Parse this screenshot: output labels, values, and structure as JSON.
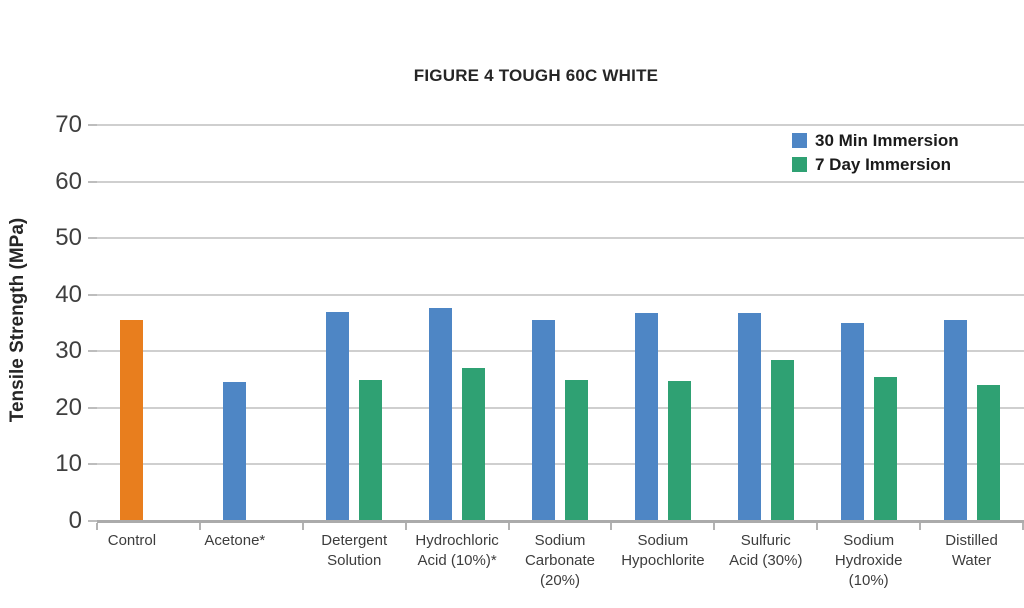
{
  "chart_data": {
    "type": "bar",
    "title": "FIGURE 4 TOUGH 60C WHITE",
    "ylabel": "Tensile Strength (MPa)",
    "xlabel": "",
    "ylim": [
      0,
      70
    ],
    "yticks": [
      0,
      10,
      20,
      30,
      40,
      50,
      60,
      70
    ],
    "grid": true,
    "legend_position": "top-right",
    "categories": [
      "Control",
      "Acetone*",
      "Detergent Solution",
      "Hydrochloric Acid (10%)*",
      "Sodium Carbonate (20%)",
      "Sodium Hypochlorite",
      "Sulfuric Acid (30%)",
      "Sodium Hydroxide (10%)",
      "Distilled Water"
    ],
    "category_label_lines": [
      [
        "Control"
      ],
      [
        "Acetone*"
      ],
      [
        "Detergent",
        "Solution"
      ],
      [
        "Hydrochloric",
        "Acid (10%)*"
      ],
      [
        "Sodium",
        "Carbonate",
        "(20%)"
      ],
      [
        "Sodium",
        "Hypochlorite"
      ],
      [
        "Sulfuric",
        "Acid (30%)"
      ],
      [
        "Sodium",
        "Hydroxide",
        "(10%)"
      ],
      [
        "Distilled",
        "Water"
      ]
    ],
    "series": [
      {
        "name": "30 Min Immersion",
        "color": "#4E86C5",
        "values": [
          35.5,
          24.5,
          37,
          37.7,
          35.5,
          36.7,
          36.8,
          35,
          35.5
        ]
      },
      {
        "name": "7 Day Immersion",
        "color": "#2FA173",
        "values": [
          null,
          null,
          25,
          27.1,
          25,
          24.8,
          28.5,
          25.5,
          24
        ]
      }
    ],
    "bar_color_overrides": [
      {
        "series_index": 0,
        "category_index": 0,
        "color": "#E87E1E"
      }
    ]
  },
  "style_colors": {
    "gridline": "#CFCFCF",
    "axis_line": "#ABABAB",
    "tick_text": "#3F3F3F",
    "category_text": "#3D3D3D",
    "title_text": "#262626"
  }
}
